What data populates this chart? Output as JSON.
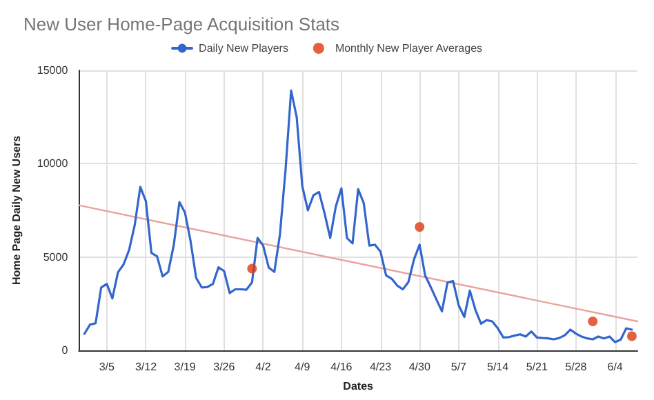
{
  "chart_data": {
    "type": "line",
    "title": "New User Home-Page Acquisition Stats",
    "xlabel": "Dates",
    "ylabel": "Home Page Daily New Users",
    "xlim": [
      "--02-28",
      "--06-08"
    ],
    "xticks": [
      {
        "value": "--03-05",
        "label": "3/5"
      },
      {
        "value": "--03-12",
        "label": "3/12"
      },
      {
        "value": "--03-19",
        "label": "3/19"
      },
      {
        "value": "--03-26",
        "label": "3/26"
      },
      {
        "value": "--04-02",
        "label": "4/2"
      },
      {
        "value": "--04-09",
        "label": "4/9"
      },
      {
        "value": "--04-16",
        "label": "4/16"
      },
      {
        "value": "--04-23",
        "label": "4/23"
      },
      {
        "value": "--04-30",
        "label": "4/30"
      },
      {
        "value": "--05-07",
        "label": "5/7"
      },
      {
        "value": "--05-14",
        "label": "5/14"
      },
      {
        "value": "--05-21",
        "label": "5/21"
      },
      {
        "value": "--05-28",
        "label": "5/28"
      },
      {
        "value": "--06-04",
        "label": "6/4"
      }
    ],
    "ylim": [
      0,
      15000
    ],
    "yticks": [
      0,
      5000,
      10000,
      15000
    ],
    "grid": true,
    "legend": "top",
    "series": [
      {
        "name": "Daily New Players",
        "color": "#3366cc",
        "x": [
          "--03-01",
          "--03-02",
          "--03-03",
          "--03-04",
          "--03-05",
          "--03-06",
          "--03-07",
          "--03-08",
          "--03-09",
          "--03-10",
          "--03-11",
          "--03-12",
          "--03-13",
          "--03-14",
          "--03-15",
          "--03-16",
          "--03-17",
          "--03-18",
          "--03-19",
          "--03-20",
          "--03-21",
          "--03-22",
          "--03-23",
          "--03-24",
          "--03-25",
          "--03-26",
          "--03-27",
          "--03-28",
          "--03-29",
          "--03-30",
          "--03-31",
          "--04-01",
          "--04-02",
          "--04-03",
          "--04-04",
          "--04-05",
          "--04-06",
          "--04-07",
          "--04-08",
          "--04-09",
          "--04-10",
          "--04-11",
          "--04-12",
          "--04-13",
          "--04-14",
          "--04-15",
          "--04-16",
          "--04-17",
          "--04-18",
          "--04-19",
          "--04-20",
          "--04-21",
          "--04-22",
          "--04-23",
          "--04-24",
          "--04-25",
          "--04-26",
          "--04-27",
          "--04-28",
          "--04-29",
          "--04-30",
          "--05-01",
          "--05-02",
          "--05-03",
          "--05-04",
          "--05-05",
          "--05-06",
          "--05-07",
          "--05-08",
          "--05-09",
          "--05-10",
          "--05-11",
          "--05-12",
          "--05-13",
          "--05-14",
          "--05-15",
          "--05-16",
          "--05-17",
          "--05-18",
          "--05-19",
          "--05-20",
          "--05-21",
          "--05-22",
          "--05-23",
          "--05-24",
          "--05-25",
          "--05-26",
          "--05-27",
          "--05-28",
          "--05-29",
          "--05-30",
          "--05-31",
          "--06-01",
          "--06-02",
          "--06-03",
          "--06-04",
          "--06-05",
          "--06-06",
          "--06-07"
        ],
        "values": [
          885,
          1380,
          1450,
          3370,
          3560,
          2780,
          4180,
          4600,
          5380,
          6710,
          8750,
          7990,
          5210,
          5040,
          3960,
          4200,
          5650,
          7940,
          7380,
          5850,
          3880,
          3370,
          3390,
          3560,
          4450,
          4250,
          3070,
          3270,
          3270,
          3250,
          3640,
          6020,
          5610,
          4430,
          4200,
          6220,
          9660,
          13920,
          12490,
          8800,
          7500,
          8310,
          8480,
          7330,
          6020,
          7700,
          8680,
          6020,
          5730,
          8630,
          7890,
          5610,
          5660,
          5290,
          4010,
          3840,
          3470,
          3270,
          3660,
          4870,
          5660,
          4010,
          3390,
          2730,
          2090,
          3640,
          3710,
          2410,
          1790,
          3200,
          2160,
          1430,
          1620,
          1550,
          1180,
          690,
          710,
          790,
          860,
          740,
          1010,
          690,
          660,
          640,
          590,
          660,
          810,
          1110,
          890,
          740,
          640,
          590,
          740,
          640,
          740,
          440,
          570,
          1180,
          1110
        ]
      },
      {
        "name": "Monthly New Player Averages",
        "type": "scatter",
        "color": "#dc3912",
        "x": [
          "--03-31",
          "--04-30",
          "--05-31",
          "--06-07"
        ],
        "values": [
          4380,
          6610,
          1550,
          760
        ]
      },
      {
        "color": "#e8a49c",
        "x": [
          "--02-28",
          "--06-08"
        ],
        "values": [
          7770,
          1550
        ]
      }
    ]
  }
}
